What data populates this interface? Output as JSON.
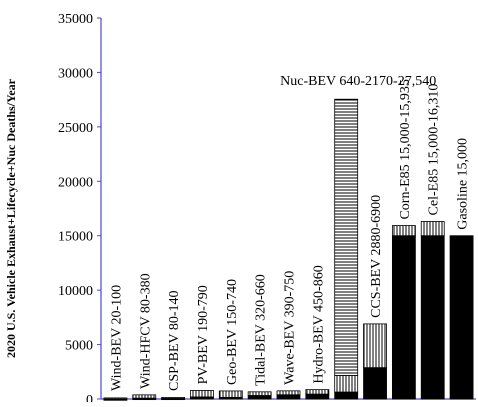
{
  "chart_data": {
    "type": "bar",
    "ylabel": "2020 U.S. Vehicle Exhaust+Lifecycle+Nuc Deaths/Year",
    "ylim": [
      0,
      35000
    ],
    "yticks": [
      "0",
      "5000",
      "10000",
      "15000",
      "20000",
      "25000",
      "30000",
      "35000"
    ],
    "categories": [
      "Wind-BEV 20-100",
      "Wind-HFCV 80-380",
      "CSP-BEV 80-140",
      "PV-BEV 190-790",
      "Geo-BEV 150-740",
      "Tidal-BEV 320-660",
      "Wave-BEV 390-750",
      "Hydro-BEV 450-860",
      "Nuc-BEV 640-2170-27,540",
      "CCS-BEV 2880-6900",
      "Corn-E85 15,000-15,935",
      "Cel-E85 15,000-16,310",
      "Gasoline 15,000"
    ],
    "low": [
      20,
      80,
      80,
      190,
      150,
      320,
      390,
      450,
      640,
      2880,
      15000,
      15000,
      15000
    ],
    "mid": [
      null,
      null,
      null,
      null,
      null,
      null,
      null,
      null,
      2170,
      null,
      null,
      null,
      null
    ],
    "high": [
      100,
      380,
      140,
      790,
      740,
      660,
      750,
      860,
      27540,
      6900,
      15935,
      16310,
      15000
    ],
    "label_orientation": [
      "vertical",
      "vertical",
      "vertical",
      "vertical",
      "vertical",
      "vertical",
      "vertical",
      "vertical",
      "horizontal",
      "vertical",
      "vertical",
      "vertical",
      "vertical"
    ],
    "grid": false,
    "colors": {
      "low_fill": "#000000",
      "range_fill": "#ffffff",
      "stroke": "#000000",
      "axis": "#4a4ad0"
    }
  }
}
